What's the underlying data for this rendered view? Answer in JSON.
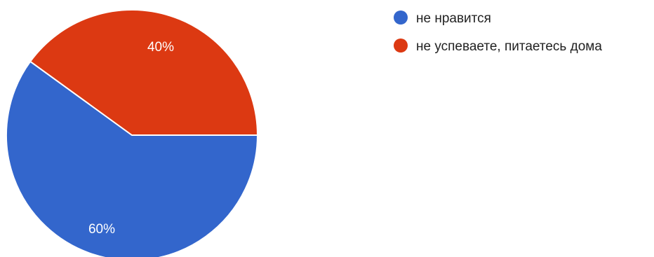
{
  "chart_data": {
    "type": "pie",
    "title": "",
    "slices": [
      {
        "label": "не нравится",
        "value": 60,
        "percent_label": "60%",
        "color": "#3366cc"
      },
      {
        "label": "не успеваете, питаетесь дома",
        "value": 40,
        "percent_label": "40%",
        "color": "#dc3912"
      }
    ],
    "legend": "top-right"
  }
}
